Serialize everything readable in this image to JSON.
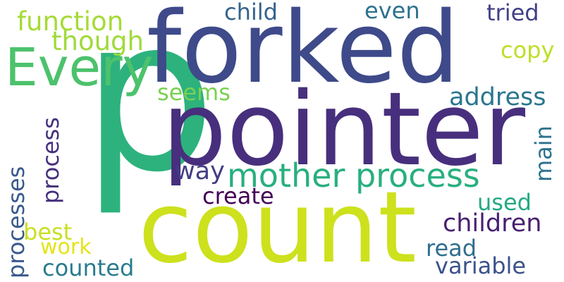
{
  "words": {
    "p": {
      "text": "p",
      "color": "#2db27d"
    },
    "forked": {
      "text": "forked",
      "color": "#3e4a89"
    },
    "pointer": {
      "text": "pointer",
      "color": "#472f7d"
    },
    "count": {
      "text": "count",
      "color": "#cde11d"
    },
    "every": {
      "text": "Every",
      "color": "#4cc26c"
    },
    "mother": {
      "text": "mother process",
      "color": "#29af7f"
    },
    "function": {
      "text": "function",
      "color": "#a5db36"
    },
    "though": {
      "text": "though",
      "color": "#a0da39"
    },
    "child": {
      "text": "child",
      "color": "#33638d"
    },
    "even": {
      "text": "even",
      "color": "#2d718e"
    },
    "tried": {
      "text": "tried",
      "color": "#424086"
    },
    "copy": {
      "text": "copy",
      "color": "#bddf26"
    },
    "seems": {
      "text": "seems",
      "color": "#7ad151"
    },
    "address": {
      "text": "address",
      "color": "#2a768e"
    },
    "way": {
      "text": "way",
      "color": "#433e85"
    },
    "main": {
      "text": "main",
      "color": "#2c728e"
    },
    "create": {
      "text": "create",
      "color": "#440154"
    },
    "process": {
      "text": "process",
      "color": "#46307e"
    },
    "processes": {
      "text": "processes",
      "color": "#38598c"
    },
    "used": {
      "text": "used",
      "color": "#23a983"
    },
    "children": {
      "text": "children",
      "color": "#481f70"
    },
    "best": {
      "text": "best",
      "color": "#c8e020"
    },
    "work": {
      "text": "work",
      "color": "#e4e419"
    },
    "read": {
      "text": "read",
      "color": "#2e6e8e"
    },
    "counted": {
      "text": "counted",
      "color": "#287c8e"
    },
    "variable": {
      "text": "variable",
      "color": "#3b528b"
    }
  }
}
